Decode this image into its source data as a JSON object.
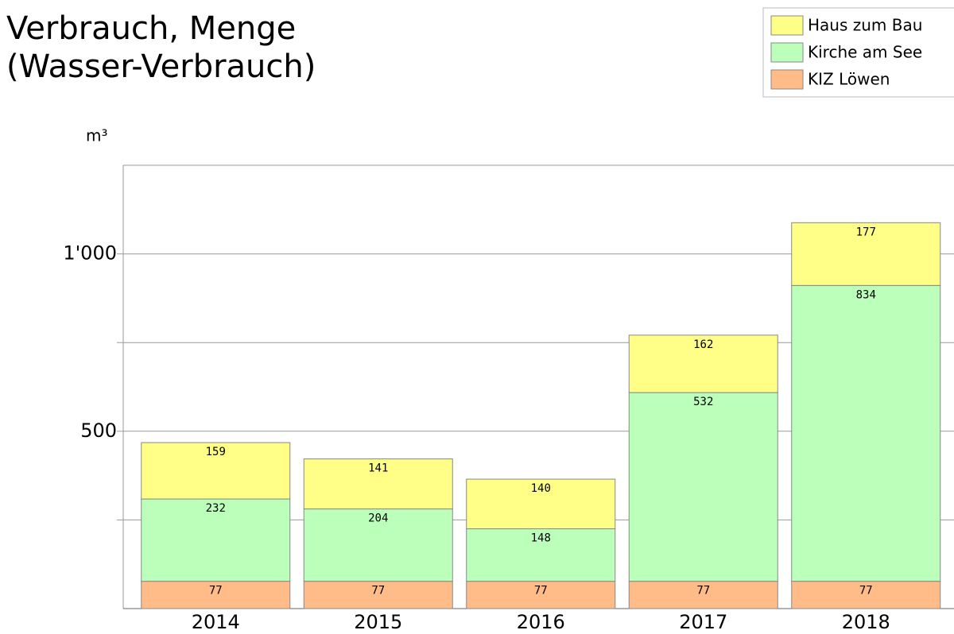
{
  "chart_data": {
    "type": "stacked_bar",
    "title": "Verbrauch, Menge",
    "subtitle": "(Wasser-Verbrauch)",
    "y_label": "m³",
    "categories": [
      "2014",
      "2015",
      "2016",
      "2017",
      "2018"
    ],
    "series": [
      {
        "name": "KIZ Löwen",
        "color": "#ffbb88",
        "values": [
          77,
          77,
          77,
          77,
          77
        ]
      },
      {
        "name": "Kirche am See",
        "color": "#bbffbb",
        "values": [
          232,
          204,
          148,
          532,
          834
        ]
      },
      {
        "name": "Haus zum Bau",
        "color": "#ffff88",
        "values": [
          159,
          141,
          140,
          162,
          177
        ]
      }
    ],
    "ylim": [
      0,
      1250
    ],
    "yticks": [
      500,
      {
        "value": 1000,
        "label": "1'000"
      }
    ],
    "minor_yticks": [
      250,
      750
    ],
    "grid": true,
    "legend": "top-right"
  }
}
